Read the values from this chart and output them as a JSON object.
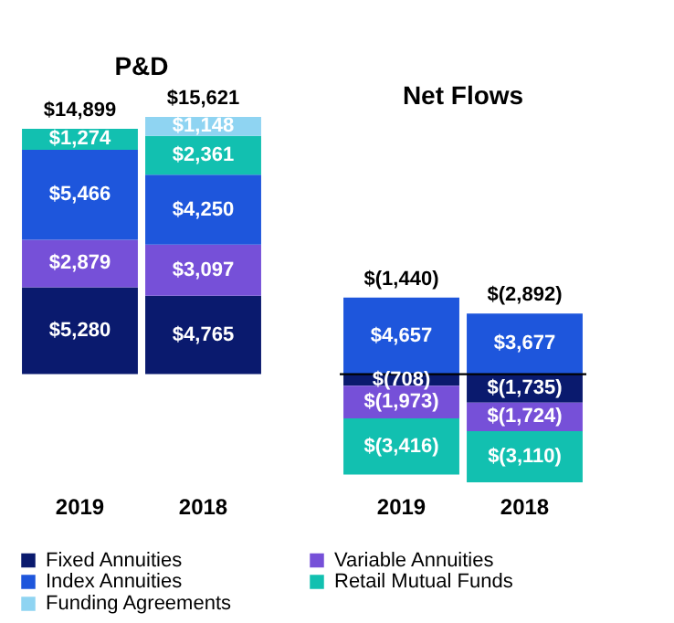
{
  "chart_data": [
    {
      "type": "bar",
      "title": "P&D",
      "stacked": true,
      "categories": [
        "2019",
        "2018"
      ],
      "tick_labels": "x",
      "legend": "bottom",
      "grid": false,
      "totals": [
        "$14,899",
        "$15,621"
      ],
      "series": [
        {
          "name": "Fixed Annuities",
          "color": "#0a1a6e",
          "values": [
            5280,
            4765
          ],
          "value_labels": [
            "$5,280",
            "$4,765"
          ]
        },
        {
          "name": "Variable Annuities",
          "color": "#7650d8",
          "values": [
            2879,
            3097
          ],
          "value_labels": [
            "$2,879",
            "$3,097"
          ]
        },
        {
          "name": "Index Annuities",
          "color": "#1e56dc",
          "values": [
            5466,
            4250
          ],
          "value_labels": [
            "$5,466",
            "$4,250"
          ]
        },
        {
          "name": "Retail Mutual Funds",
          "color": "#12c0b0",
          "values": [
            1274,
            2361
          ],
          "value_labels": [
            "$1,274",
            "$2,361"
          ]
        },
        {
          "name": "Funding Agreements",
          "color": "#8fd4f2",
          "values": [
            null,
            1148
          ],
          "value_labels": [
            null,
            "$1,148"
          ]
        }
      ]
    },
    {
      "type": "bar",
      "title": "Net Flows",
      "stacked": true,
      "categories": [
        "2019",
        "2018"
      ],
      "tick_labels": "x",
      "legend": "bottom",
      "grid": false,
      "totals": [
        "$(1,440)",
        "$(2,892)"
      ],
      "ref_lines": [
        {
          "axis": "y",
          "value": 0,
          "color": "#000000",
          "line_style": "solid"
        }
      ],
      "series": [
        {
          "name": "Fixed Annuities",
          "color": "#0a1a6e",
          "values": [
            -708,
            -1735
          ],
          "value_labels": [
            "$(708)",
            "$(1,735)"
          ]
        },
        {
          "name": "Variable Annuities",
          "color": "#7650d8",
          "values": [
            -1973,
            -1724
          ],
          "value_labels": [
            "$(1,973)",
            "$(1,724)"
          ]
        },
        {
          "name": "Index Annuities",
          "color": "#1e56dc",
          "values": [
            4657,
            3677
          ],
          "value_labels": [
            "$4,657",
            "$3,677"
          ]
        },
        {
          "name": "Retail Mutual Funds",
          "color": "#12c0b0",
          "values": [
            -3416,
            -3110
          ],
          "value_labels": [
            "$(3,416)",
            "$(3,110)"
          ]
        }
      ]
    }
  ]
}
